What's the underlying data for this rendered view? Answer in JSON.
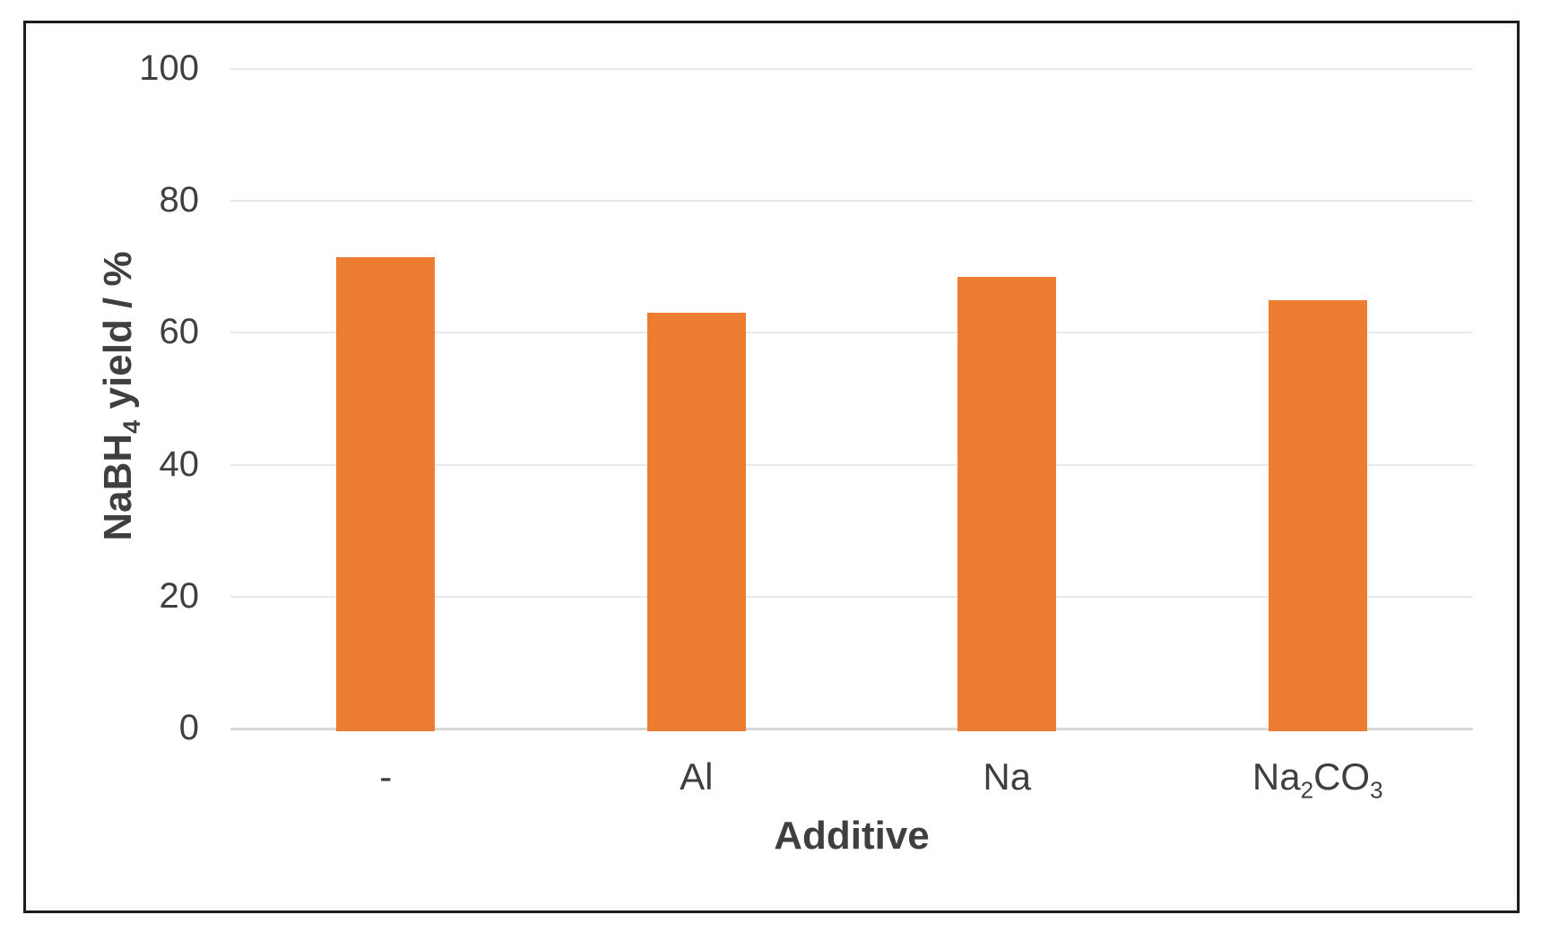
{
  "chart_data": {
    "type": "bar",
    "xlabel": "Additive",
    "ylabel": "NaBH4 yield / %",
    "ylabel_parts": [
      {
        "t": "NaBH"
      },
      {
        "t": "4",
        "sub": true
      },
      {
        "t": " yield / %"
      }
    ],
    "categories": [
      "-",
      "Al",
      "Na",
      "Na2CO3"
    ],
    "category_parts": [
      [
        {
          "t": "-"
        }
      ],
      [
        {
          "t": "Al"
        }
      ],
      [
        {
          "t": "Na"
        }
      ],
      [
        {
          "t": "Na"
        },
        {
          "t": "2",
          "sub": true
        },
        {
          "t": "CO"
        },
        {
          "t": "3",
          "sub": true
        }
      ]
    ],
    "values": [
      71.5,
      63,
      68.5,
      65
    ],
    "yticks": [
      0,
      20,
      40,
      60,
      80,
      100
    ],
    "ylim": [
      0,
      100
    ],
    "grid": true,
    "legend": "none",
    "bar_color": "#ED7D31",
    "gridline_color": "#e9e9e9",
    "axis_line_color": "#d9d9d9",
    "text_color": "#3f3f3f",
    "frame_color": "#1c1c1c"
  }
}
